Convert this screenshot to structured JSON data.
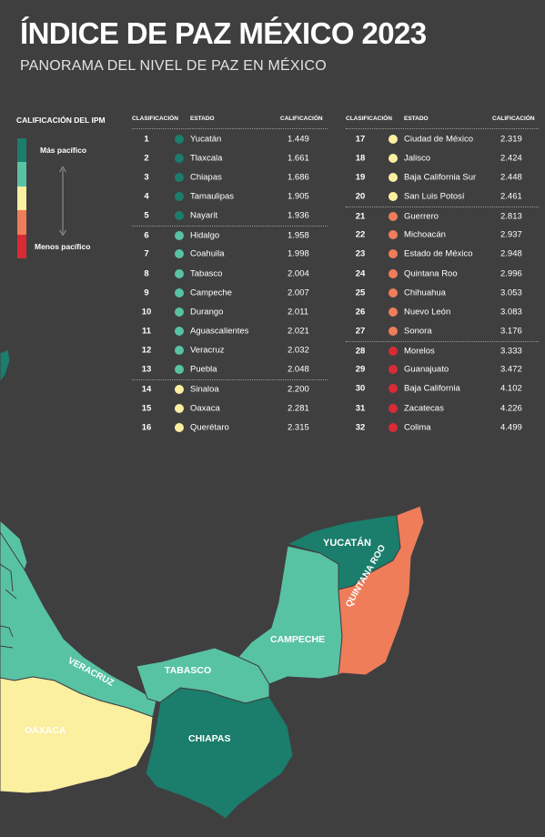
{
  "title": "ÍNDICE DE PAZ MÉXICO 2023",
  "subtitle": "PANORAMA DEL NIVEL DE PAZ EN MÉXICO",
  "legend": {
    "title": "CALIFICACIÓN DEL IPM",
    "top_label": "Más pacífico",
    "bottom_label": "Menos pacífico",
    "colors": [
      "#1b7d6b",
      "#58c3a3",
      "#fbefa0",
      "#ef7d5a",
      "#d92b35"
    ]
  },
  "table_headers": {
    "rank": "CLASIFICACIÓN",
    "state": "ESTADO",
    "score": "CALIFICACIÓN"
  },
  "level_colors": {
    "1": "#1b7d6b",
    "2": "#58c3a3",
    "3": "#fbefa0",
    "4": "#ef7d5a",
    "5": "#d92b35"
  },
  "rankings": [
    {
      "rank": "1",
      "state": "Yucatán",
      "score": "1.449",
      "level": 1
    },
    {
      "rank": "2",
      "state": "Tlaxcala",
      "score": "1.661",
      "level": 1
    },
    {
      "rank": "3",
      "state": "Chiapas",
      "score": "1.686",
      "level": 1
    },
    {
      "rank": "4",
      "state": "Tamaulipas",
      "score": "1.905",
      "level": 1
    },
    {
      "rank": "5",
      "state": "Nayarit",
      "score": "1.936",
      "level": 1
    },
    {
      "rank": "6",
      "state": "Hidalgo",
      "score": "1.958",
      "level": 2
    },
    {
      "rank": "7",
      "state": "Coahuila",
      "score": "1.998",
      "level": 2
    },
    {
      "rank": "8",
      "state": "Tabasco",
      "score": "2.004",
      "level": 2
    },
    {
      "rank": "9",
      "state": "Campeche",
      "score": "2.007",
      "level": 2
    },
    {
      "rank": "10",
      "state": "Durango",
      "score": "2.011",
      "level": 2
    },
    {
      "rank": "11",
      "state": "Aguascalientes",
      "score": "2.021",
      "level": 2
    },
    {
      "rank": "12",
      "state": "Veracruz",
      "score": "2.032",
      "level": 2
    },
    {
      "rank": "13",
      "state": "Puebla",
      "score": "2.048",
      "level": 2
    },
    {
      "rank": "14",
      "state": "Sinaloa",
      "score": "2.200",
      "level": 3
    },
    {
      "rank": "15",
      "state": "Oaxaca",
      "score": "2.281",
      "level": 3
    },
    {
      "rank": "16",
      "state": "Querétaro",
      "score": "2.315",
      "level": 3
    },
    {
      "rank": "17",
      "state": "Ciudad de México",
      "score": "2.319",
      "level": 3
    },
    {
      "rank": "18",
      "state": "Jalisco",
      "score": "2.424",
      "level": 3
    },
    {
      "rank": "19",
      "state": "Baja California Sur",
      "score": "2.448",
      "level": 3
    },
    {
      "rank": "20",
      "state": "San Luis Potosí",
      "score": "2.461",
      "level": 3
    },
    {
      "rank": "21",
      "state": "Guerrero",
      "score": "2.813",
      "level": 4
    },
    {
      "rank": "22",
      "state": "Michoacán",
      "score": "2.937",
      "level": 4
    },
    {
      "rank": "23",
      "state": "Estado de México",
      "score": "2.948",
      "level": 4
    },
    {
      "rank": "24",
      "state": "Quintana Roo",
      "score": "2.996",
      "level": 4
    },
    {
      "rank": "25",
      "state": "Chihuahua",
      "score": "3.053",
      "level": 4
    },
    {
      "rank": "26",
      "state": "Nuevo León",
      "score": "3.083",
      "level": 4
    },
    {
      "rank": "27",
      "state": "Sonora",
      "score": "3.176",
      "level": 4
    },
    {
      "rank": "28",
      "state": "Morelos",
      "score": "3.333",
      "level": 5
    },
    {
      "rank": "29",
      "state": "Guanajuato",
      "score": "3.472",
      "level": 5
    },
    {
      "rank": "30",
      "state": "Baja California",
      "score": "4.102",
      "level": 5
    },
    {
      "rank": "31",
      "state": "Zacatecas",
      "score": "4.226",
      "level": 5
    },
    {
      "rank": "32",
      "state": "Colima",
      "score": "4.499",
      "level": 5
    }
  ],
  "map": {
    "labels": {
      "yucatan": "YUCATÁN",
      "quintana_roo": "QUINTANA ROO",
      "campeche": "CAMPECHE",
      "veracruz": "VERACRUZ",
      "tabasco": "TABASCO",
      "oaxaca": "OAXACA",
      "chiapas": "CHIAPAS"
    },
    "region_levels": {
      "yucatan": 1,
      "quintana_roo": 4,
      "campeche": 2,
      "tabasco": 2,
      "chiapas": 1,
      "veracruz": 2,
      "oaxaca": 3,
      "puebla": 2,
      "guerrero": 4,
      "tamaulipas": 1
    }
  }
}
